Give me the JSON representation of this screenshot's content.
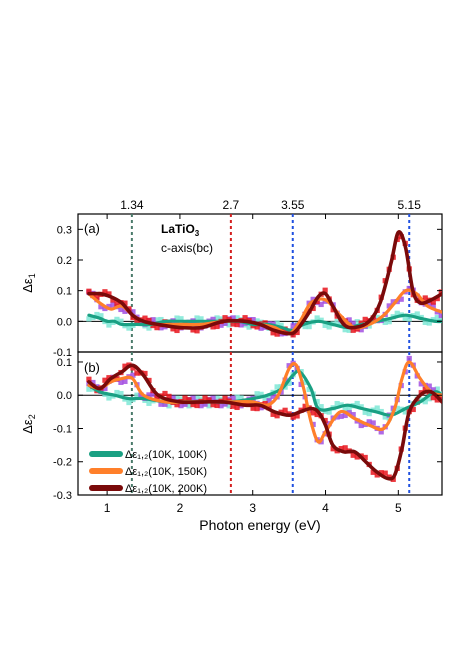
{
  "chart_data": [
    {
      "panel_label": "(a)",
      "type": "line",
      "title": "LaTiO",
      "title_sub": "3",
      "subtitle": "c-axis(bc)",
      "xlabel": "Photon energy (eV)",
      "ylabel_base": "Δε",
      "ylabel_sub": "1",
      "xlim": [
        0.6,
        5.6
      ],
      "ylim": [
        -0.1,
        0.35
      ],
      "yticks": [
        "-0.1",
        "0.0",
        "0.1",
        "0.2",
        "0.3"
      ],
      "ytick_values": [
        -0.1,
        0.0,
        0.1,
        0.2,
        0.3
      ],
      "series": [
        {
          "color": "#1aa083",
          "x": [
            0.75,
            0.9,
            1.0,
            1.1,
            1.2,
            1.4,
            1.6,
            1.8,
            2.0,
            2.2,
            2.5,
            2.8,
            3.0,
            3.2,
            3.4,
            3.55,
            3.7,
            3.9,
            4.1,
            4.3,
            4.5,
            4.7,
            4.9,
            5.1,
            5.3,
            5.5,
            5.6
          ],
          "values": [
            0.02,
            0.01,
            0.0,
            0.0,
            -0.01,
            -0.01,
            -0.01,
            0.0,
            0.0,
            0.0,
            0.0,
            0.0,
            -0.01,
            -0.01,
            -0.02,
            -0.03,
            -0.01,
            0.0,
            -0.01,
            -0.02,
            -0.01,
            0.0,
            0.01,
            0.02,
            0.01,
            0.0,
            0.0
          ]
        },
        {
          "color": "#ff7f2a",
          "x": [
            0.75,
            0.9,
            1.05,
            1.2,
            1.35,
            1.5,
            1.7,
            2.0,
            2.3,
            2.6,
            2.9,
            3.1,
            3.3,
            3.5,
            3.65,
            3.8,
            4.0,
            4.2,
            4.4,
            4.6,
            4.8,
            4.95,
            5.1,
            5.25,
            5.4,
            5.6
          ],
          "values": [
            0.09,
            0.06,
            0.04,
            0.05,
            0.02,
            0.0,
            -0.01,
            -0.01,
            -0.01,
            0.0,
            0.0,
            -0.01,
            -0.02,
            -0.04,
            0.0,
            0.06,
            0.07,
            0.02,
            -0.02,
            -0.01,
            0.02,
            0.06,
            0.1,
            0.09,
            0.05,
            0.03
          ]
        },
        {
          "color": "#7a0a0a",
          "x": [
            0.75,
            0.9,
            1.05,
            1.2,
            1.35,
            1.5,
            1.7,
            2.0,
            2.3,
            2.6,
            2.9,
            3.1,
            3.3,
            3.5,
            3.6,
            3.75,
            3.9,
            4.0,
            4.1,
            4.25,
            4.4,
            4.6,
            4.75,
            4.9,
            5.0,
            5.1,
            5.2,
            5.3,
            5.45,
            5.6
          ],
          "values": [
            0.09,
            0.09,
            0.08,
            0.06,
            0.02,
            0.0,
            -0.01,
            -0.02,
            -0.02,
            0.0,
            0.0,
            -0.01,
            -0.03,
            -0.04,
            -0.03,
            0.02,
            0.08,
            0.09,
            0.05,
            -0.01,
            -0.02,
            0.0,
            0.06,
            0.19,
            0.29,
            0.24,
            0.1,
            0.06,
            0.07,
            0.09
          ]
        }
      ]
    },
    {
      "panel_label": "(b)",
      "type": "line",
      "xlabel": "Photon energy (eV)",
      "ylabel_base": "Δε",
      "ylabel_sub": "2",
      "xlim": [
        0.6,
        5.6
      ],
      "ylim": [
        -0.3,
        0.13
      ],
      "xticks": [
        "1",
        "2",
        "3",
        "4",
        "5"
      ],
      "xtick_values": [
        1,
        2,
        3,
        4,
        5
      ],
      "yticks": [
        "-0.3",
        "-0.2",
        "-0.1",
        "0.0",
        "0.1"
      ],
      "ytick_values": [
        -0.3,
        -0.2,
        -0.1,
        0.0,
        0.1
      ],
      "top_ticks": [
        "1.34",
        "2.7",
        "3.55",
        "5.15"
      ],
      "top_tick_values": [
        1.34,
        2.7,
        3.55,
        5.15
      ],
      "vlines": [
        {
          "x": 1.34,
          "color": "#4a7a6a"
        },
        {
          "x": 2.7,
          "color": "#d42020"
        },
        {
          "x": 3.55,
          "color": "#2050e0"
        },
        {
          "x": 5.15,
          "color": "#2050e0"
        }
      ],
      "legend_position": "bottom-left",
      "series": [
        {
          "name": "Δε₁,₂(10K, 100K)",
          "color": "#1aa083",
          "x": [
            0.75,
            0.9,
            1.1,
            1.3,
            1.5,
            1.8,
            2.1,
            2.4,
            2.7,
            3.0,
            3.2,
            3.4,
            3.55,
            3.65,
            3.8,
            3.9,
            4.1,
            4.3,
            4.5,
            4.7,
            4.9,
            5.1,
            5.3,
            5.5,
            5.6
          ],
          "values": [
            0.03,
            0.01,
            0.0,
            -0.01,
            -0.01,
            -0.02,
            -0.02,
            -0.02,
            -0.02,
            -0.01,
            0.0,
            0.02,
            0.06,
            0.07,
            0.02,
            -0.04,
            -0.04,
            -0.03,
            -0.04,
            -0.05,
            -0.06,
            -0.04,
            -0.02,
            0.01,
            0.0
          ]
        },
        {
          "name": "Δε₁,₂(10K, 150K)",
          "color": "#ff7f2a",
          "x": [
            0.75,
            0.9,
            1.05,
            1.2,
            1.35,
            1.5,
            1.8,
            2.1,
            2.4,
            2.7,
            3.0,
            3.2,
            3.35,
            3.5,
            3.6,
            3.7,
            3.8,
            3.9,
            4.0,
            4.2,
            4.4,
            4.6,
            4.8,
            4.95,
            5.05,
            5.15,
            5.3,
            5.45,
            5.6
          ],
          "values": [
            0.03,
            0.02,
            0.04,
            0.05,
            0.05,
            0.0,
            -0.02,
            -0.02,
            -0.02,
            -0.02,
            -0.02,
            -0.03,
            0.0,
            0.08,
            0.09,
            0.02,
            -0.08,
            -0.14,
            -0.11,
            -0.05,
            -0.07,
            -0.09,
            -0.1,
            -0.04,
            0.05,
            0.1,
            0.05,
            0.01,
            0.0
          ]
        },
        {
          "name": "Δε₁,₂(10K, 200K)",
          "color": "#7a0a0a",
          "x": [
            0.75,
            0.9,
            1.05,
            1.2,
            1.35,
            1.5,
            1.7,
            2.0,
            2.3,
            2.6,
            2.9,
            3.1,
            3.3,
            3.5,
            3.65,
            3.8,
            3.9,
            4.0,
            4.1,
            4.25,
            4.4,
            4.55,
            4.7,
            4.85,
            4.95,
            5.05,
            5.15,
            5.3,
            5.45,
            5.6
          ],
          "values": [
            0.04,
            0.02,
            0.05,
            0.07,
            0.09,
            0.06,
            0.0,
            -0.02,
            -0.02,
            -0.02,
            -0.03,
            -0.03,
            -0.05,
            -0.06,
            -0.05,
            -0.04,
            -0.05,
            -0.09,
            -0.15,
            -0.17,
            -0.17,
            -0.2,
            -0.23,
            -0.25,
            -0.24,
            -0.16,
            -0.05,
            0.0,
            0.01,
            -0.02
          ]
        }
      ]
    }
  ]
}
